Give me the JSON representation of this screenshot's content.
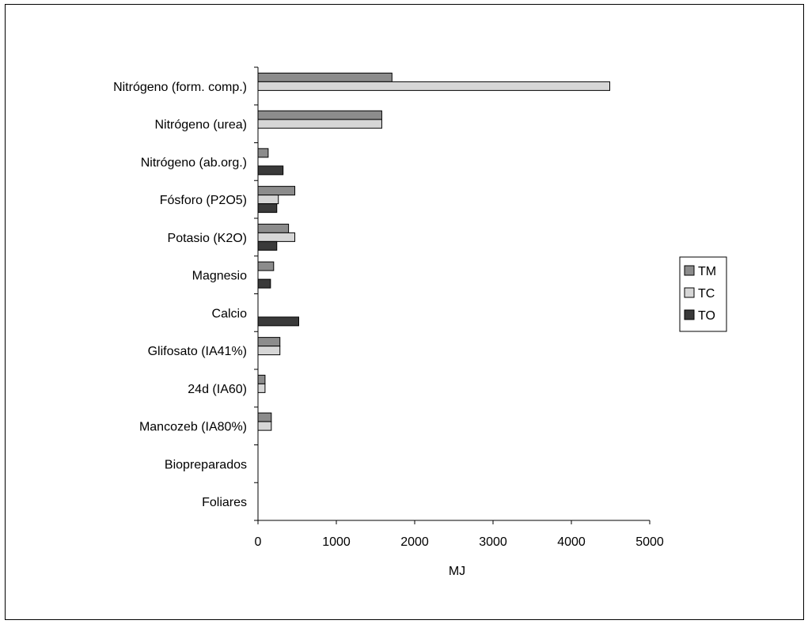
{
  "chart_data": {
    "type": "bar",
    "orientation": "horizontal",
    "categories": [
      "Nitrógeno (form. comp.)",
      "Nitrógeno (urea)",
      "Nitrógeno (ab.org.)",
      "Fósforo (P2O5)",
      "Potasio (K2O)",
      "Magnesio",
      "Calcio",
      "Glifosato (IA41%)",
      "24d (IA60)",
      "Mancozeb (IA80%)",
      "Biopreparados",
      "Foliares"
    ],
    "series": [
      {
        "name": "TM",
        "color": "#8c8c8c",
        "values": [
          1710,
          1580,
          130,
          470,
          390,
          200,
          0,
          280,
          90,
          170,
          0,
          0
        ]
      },
      {
        "name": "TC",
        "color": "#d6d6d6",
        "values": [
          4490,
          1580,
          0,
          260,
          470,
          0,
          0,
          280,
          90,
          170,
          0,
          0
        ]
      },
      {
        "name": "TO",
        "color": "#3a3a3a",
        "values": [
          0,
          0,
          320,
          240,
          240,
          160,
          520,
          0,
          0,
          0,
          0,
          0
        ]
      }
    ],
    "xlabel": "MJ",
    "ylabel": "",
    "title": "",
    "xlim": [
      0,
      5000
    ],
    "xticks": [
      0,
      1000,
      2000,
      3000,
      4000,
      5000
    ],
    "grid": false,
    "legend_position": "right"
  }
}
